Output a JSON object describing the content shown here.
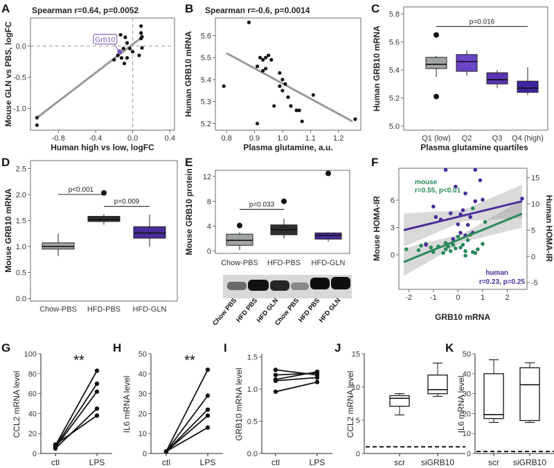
{
  "figure": {
    "panel_letters": [
      "A",
      "B",
      "C",
      "D",
      "E",
      "F",
      "G",
      "H",
      "I",
      "J",
      "K"
    ],
    "colors": {
      "gray": "#999999",
      "box_gray": "#a0a4a2",
      "box_dark": "#2e2e2e",
      "purple_mid": "#7b54b6",
      "purple_q2": "#6b44c8",
      "purple_dark": "#4a2c9a",
      "purple_q4": "#3f24a0",
      "green": "#2a8a5a",
      "dashed": "#aaaaaa"
    }
  },
  "chart_data": [
    {
      "panel": "A",
      "type": "scatter",
      "title": "Spearman r=0.64, p=0.0052",
      "xlabel": "Human high vs low, logFC",
      "ylabel": "Mouse GLN vs PBS, logFC",
      "xlim": [
        -1.1,
        0.45
      ],
      "ylim": [
        -1.35,
        0.45
      ],
      "xticks": [
        "-0.8",
        "-0.4",
        "0.0",
        "0.4"
      ],
      "xtick_values": [
        -0.8,
        -0.4,
        0.0,
        0.4
      ],
      "yticks": [
        "-1.0",
        "-0.5",
        "0.0"
      ],
      "ytick_values": [
        -1.0,
        -0.5,
        0.0
      ],
      "annotation": "Grb10",
      "highlight_point": [
        -0.14,
        -0.09
      ],
      "fit_line": [
        [
          -1.03,
          -1.15
        ],
        [
          0.09,
          0.13
        ]
      ],
      "points": [
        [
          -1.03,
          -1.15
        ],
        [
          -1.03,
          -1.27
        ],
        [
          0.09,
          0.32
        ],
        [
          0.09,
          0.21
        ],
        [
          0.09,
          0.12
        ],
        [
          0.1,
          0.15
        ],
        [
          -0.13,
          0.18
        ],
        [
          -0.08,
          0.14
        ],
        [
          -0.06,
          0.05
        ],
        [
          -0.1,
          -0.04
        ],
        [
          -0.16,
          -0.15
        ],
        [
          -0.2,
          -0.22
        ],
        [
          -0.12,
          -0.19
        ],
        [
          -0.06,
          -0.19
        ],
        [
          -0.09,
          -0.28
        ],
        [
          0.07,
          -0.15
        ],
        [
          0.0,
          -0.09
        ],
        [
          -0.03,
          -0.04
        ],
        [
          0.1,
          -0.03
        ]
      ]
    },
    {
      "panel": "B",
      "type": "scatter",
      "title": "Spearman r=-0.6, p=0.0014",
      "xlabel": "Plasma glutamine, a.u.",
      "ylabel": "Human GRB10 mRNA",
      "xlim": [
        0.76,
        1.28
      ],
      "ylim": [
        5.17,
        5.68
      ],
      "xticks": [
        "0.8",
        "0.9",
        "1.0",
        "1.1",
        "1.2"
      ],
      "xtick_values": [
        0.8,
        0.9,
        1.0,
        1.1,
        1.2
      ],
      "yticks": [
        "5.2",
        "5.3",
        "5.4",
        "5.5",
        "5.6"
      ],
      "ytick_values": [
        5.2,
        5.3,
        5.4,
        5.5,
        5.6
      ],
      "fit_line": [
        [
          0.8,
          5.52
        ],
        [
          1.25,
          5.21
        ]
      ],
      "points": [
        [
          0.88,
          5.66
        ],
        [
          0.79,
          5.37
        ],
        [
          0.91,
          5.46
        ],
        [
          0.92,
          5.5
        ],
        [
          0.93,
          5.49
        ],
        [
          0.94,
          5.5
        ],
        [
          0.95,
          5.51
        ],
        [
          0.96,
          5.49
        ],
        [
          0.94,
          5.45
        ],
        [
          0.93,
          5.44
        ],
        [
          0.99,
          5.43
        ],
        [
          1.0,
          5.4
        ],
        [
          1.01,
          5.38
        ],
        [
          0.99,
          5.37
        ],
        [
          1.0,
          5.35
        ],
        [
          1.02,
          5.32
        ],
        [
          0.97,
          5.28
        ],
        [
          1.03,
          5.28
        ],
        [
          1.05,
          5.26
        ],
        [
          1.06,
          5.26
        ],
        [
          1.11,
          5.33
        ],
        [
          1.07,
          5.21
        ],
        [
          0.91,
          5.2
        ],
        [
          1.26,
          5.22
        ]
      ]
    },
    {
      "panel": "C",
      "type": "box",
      "xlabel": "Plasma glutamine quartiles",
      "ylabel": "Human GRB10 mRNA",
      "ylim": [
        4.97,
        5.85
      ],
      "yticks": [
        "5.0",
        "5.2",
        "5.4",
        "5.6",
        "5.8"
      ],
      "ytick_values": [
        5.0,
        5.2,
        5.4,
        5.6,
        5.8
      ],
      "categories": [
        "Q1 (low)",
        "Q2",
        "Q3",
        "Q4 (high)"
      ],
      "boxes": [
        {
          "min": 5.35,
          "q1": 5.41,
          "median": 5.44,
          "q3": 5.49,
          "max": 5.5,
          "outliers": [
            5.65,
            5.21
          ],
          "color": "#a0a4a2"
        },
        {
          "min": 5.36,
          "q1": 5.39,
          "median": 5.46,
          "q3": 5.51,
          "max": 5.54,
          "outliers": [],
          "color": "#6b44c8"
        },
        {
          "min": 5.27,
          "q1": 5.3,
          "median": 5.33,
          "q3": 5.38,
          "max": 5.4,
          "outliers": [],
          "color": "#5b34b0"
        },
        {
          "min": 5.22,
          "q1": 5.24,
          "median": 5.27,
          "q3": 5.32,
          "max": 5.42,
          "outliers": [],
          "color": "#3f24a0"
        }
      ],
      "annotation": {
        "text": "p=0.016",
        "from": 0,
        "to": 3,
        "y": 5.71
      }
    },
    {
      "panel": "D",
      "type": "box",
      "ylabel": "Mouse GRB10 mRNA",
      "ylim": [
        -0.05,
        2.65
      ],
      "yticks": [
        "0.0",
        "0.5",
        "1.0",
        "1.5",
        "2.0",
        "2.5"
      ],
      "ytick_values": [
        0.0,
        0.5,
        1.0,
        1.5,
        2.0,
        2.5
      ],
      "categories": [
        "Chow-PBS",
        "HFD-PBS",
        "HFD-GLN"
      ],
      "boxes": [
        {
          "min": 0.82,
          "q1": 0.95,
          "median": 1.0,
          "q3": 1.07,
          "max": 1.25,
          "outliers": [],
          "color": "#a0a4a2"
        },
        {
          "min": 1.42,
          "q1": 1.48,
          "median": 1.52,
          "q3": 1.58,
          "max": 1.62,
          "outliers": [
            2.03
          ],
          "color": "#2e2e2e"
        },
        {
          "min": 1.0,
          "q1": 1.16,
          "median": 1.26,
          "q3": 1.38,
          "max": 1.62,
          "outliers": [],
          "color": "#4a2c9a"
        }
      ],
      "annotations": [
        {
          "text": "p<0.001",
          "from": 0,
          "to": 1,
          "y": 2.0
        },
        {
          "text": "p=0.009",
          "from": 1,
          "to": 2,
          "y": 1.77
        }
      ]
    },
    {
      "panel": "E",
      "type": "box",
      "ylabel": "Mouse GRB10 protein",
      "ylim": [
        -0.4,
        13
      ],
      "yticks": [
        "0",
        "4",
        "8",
        "12"
      ],
      "ytick_values": [
        0,
        4,
        8,
        12
      ],
      "categories": [
        "Chow-PBS",
        "HFD-PBS",
        "HFD-GLN"
      ],
      "boxes": [
        {
          "min": 0.1,
          "q1": 0.9,
          "median": 1.7,
          "q3": 2.7,
          "max": 3.0,
          "outliers": [
            4.1
          ],
          "color": "#a0a4a2"
        },
        {
          "min": 2.0,
          "q1": 2.6,
          "median": 3.4,
          "q3": 4.2,
          "max": 5.2,
          "outliers": [
            8.0
          ],
          "color": "#2e2e2e"
        },
        {
          "min": 1.5,
          "q1": 1.9,
          "median": 2.5,
          "q3": 2.9,
          "max": 3.0,
          "outliers": [
            12.5
          ],
          "color": "#4a2c9a"
        }
      ],
      "annotations": [
        {
          "text": "p=0.033",
          "from": 0,
          "to": 1,
          "y": 6.7
        }
      ],
      "blot_lanes": [
        "Chow PBS",
        "HFD PBS",
        "HFD GLN",
        "Chow PBS",
        "HFD PBS",
        "HFD GLN"
      ]
    },
    {
      "panel": "F",
      "type": "scatter",
      "xlabel": "GRB10 mRNA",
      "ylabel": "Mouse HOMA-IR",
      "ylabel_right": "Human HOMA-IR",
      "xlim": [
        -2.4,
        2.8
      ],
      "ylim_left": [
        -3.8,
        9.5
      ],
      "ylim_right": [
        -6.3,
        16.8
      ],
      "xticks": [
        "-2",
        "-1",
        "0",
        "1",
        "2"
      ],
      "xtick_values": [
        -2,
        -1,
        0,
        1,
        2
      ],
      "yticks_left": [
        "0",
        "3",
        "6"
      ],
      "ytick_values_left": [
        0,
        3,
        6
      ],
      "yticks_right": [
        "-5",
        "0",
        "5",
        "10",
        "15"
      ],
      "ytick_values_right": [
        -5,
        0,
        5,
        10,
        15
      ],
      "series": [
        {
          "name": "mouse",
          "label": "mouse",
          "stat": "r=0.55, p<0.01",
          "color": "#2a8a5a",
          "axis": "left",
          "fit": [
            [
              -2.2,
              -0.8
            ],
            [
              2.6,
              4.5
            ]
          ],
          "points": [
            [
              -2.1,
              0.6
            ],
            [
              -1.6,
              0.5
            ],
            [
              -1.5,
              1.0
            ],
            [
              -1.3,
              1.2
            ],
            [
              -1.1,
              0.8
            ],
            [
              -1.0,
              0.3
            ],
            [
              -0.8,
              0.9
            ],
            [
              -0.6,
              0.2
            ],
            [
              -0.5,
              0.6
            ],
            [
              -0.4,
              0.9
            ],
            [
              -0.3,
              0.4
            ],
            [
              -0.2,
              1.1
            ],
            [
              -0.1,
              0.7
            ],
            [
              0.0,
              2.0
            ],
            [
              0.1,
              0.8
            ],
            [
              0.2,
              1.1
            ],
            [
              0.3,
              0.4
            ],
            [
              0.4,
              1.6
            ],
            [
              0.5,
              2.2
            ],
            [
              0.6,
              0.3
            ],
            [
              0.7,
              0.2
            ],
            [
              0.8,
              0.6
            ],
            [
              1.0,
              1.2
            ],
            [
              1.1,
              3.6
            ],
            [
              0.3,
              -0.1
            ],
            [
              -0.5,
              1.3
            ],
            [
              0.6,
              5.1
            ]
          ]
        },
        {
          "name": "human",
          "label": "human",
          "stat": "r=0.23, p=0.25",
          "color": "#4a2c9a",
          "axis": "right",
          "fit": [
            [
              -2.2,
              5.0
            ],
            [
              2.6,
              10.5
            ]
          ],
          "points": [
            [
              -1.3,
              2.2
            ],
            [
              -1.0,
              9.5
            ],
            [
              -0.9,
              7.5
            ],
            [
              -0.7,
              7.0
            ],
            [
              -0.3,
              8.2
            ],
            [
              -0.1,
              13.3
            ],
            [
              0.0,
              6.1
            ],
            [
              0.1,
              8.0
            ],
            [
              0.2,
              8.8
            ],
            [
              0.3,
              4.0
            ],
            [
              0.3,
              12.0
            ],
            [
              0.4,
              6.0
            ],
            [
              0.5,
              7.5
            ],
            [
              0.6,
              4.5
            ],
            [
              0.7,
              16.5
            ],
            [
              0.7,
              10.5
            ],
            [
              0.9,
              14.5
            ],
            [
              1.0,
              10.8
            ],
            [
              -0.5,
              16.5
            ],
            [
              2.6,
              11.0
            ],
            [
              -0.2,
              3.3
            ],
            [
              0.1,
              4.5
            ]
          ]
        }
      ]
    },
    {
      "panel": "G",
      "type": "line",
      "ylabel": "CCL2 mRNA level",
      "ylim": [
        0,
        100
      ],
      "yticks": [
        "0",
        "20",
        "40",
        "60",
        "80",
        "100"
      ],
      "ytick_values": [
        0,
        20,
        40,
        60,
        80,
        100
      ],
      "categories": [
        "ctl",
        "LPS"
      ],
      "annotation": "**",
      "pairs": [
        [
          8,
          83
        ],
        [
          7,
          70
        ],
        [
          6,
          62
        ],
        [
          5,
          45
        ],
        [
          9,
          38
        ]
      ]
    },
    {
      "panel": "H",
      "type": "line",
      "ylabel": "IL6 mRNA level",
      "ylim": [
        0,
        50
      ],
      "yticks": [
        "0",
        "10",
        "20",
        "30",
        "40",
        "50"
      ],
      "ytick_values": [
        0,
        10,
        20,
        30,
        40,
        50
      ],
      "categories": [
        "ctl",
        "LPS"
      ],
      "annotation": "**",
      "pairs": [
        [
          1,
          42
        ],
        [
          1,
          29
        ],
        [
          1,
          22
        ],
        [
          1,
          19
        ],
        [
          1,
          13
        ]
      ]
    },
    {
      "panel": "I",
      "type": "line",
      "ylabel": "GRB10 mRNA level",
      "ylim": [
        0,
        1.55
      ],
      "yticks": [
        "0.0",
        "0.5",
        "1.0",
        "1.5"
      ],
      "ytick_values": [
        0.0,
        0.5,
        1.0,
        1.5
      ],
      "categories": [
        "ctl",
        "LPS"
      ],
      "pairs": [
        [
          1.3,
          1.22
        ],
        [
          1.22,
          1.25
        ],
        [
          1.15,
          1.27
        ],
        [
          1.13,
          1.18
        ],
        [
          0.96,
          1.11
        ]
      ]
    },
    {
      "panel": "J",
      "type": "box",
      "ylabel": "CCL2 mRNA level",
      "ylim": [
        0,
        15
      ],
      "yticks": [
        "0",
        "5",
        "10",
        "15"
      ],
      "ytick_values": [
        0,
        5,
        10,
        15
      ],
      "categories": [
        "scr",
        "siGRB10"
      ],
      "reference_line": 1,
      "boxes": [
        {
          "min": 5.8,
          "q1": 7.1,
          "median": 8.3,
          "q3": 8.7,
          "max": 9.0,
          "outliers": [],
          "color": "#ffffff"
        },
        {
          "min": 8.6,
          "q1": 9.0,
          "median": 9.6,
          "q3": 11.8,
          "max": 13.6,
          "outliers": [],
          "color": "#ffffff"
        }
      ]
    },
    {
      "panel": "K",
      "type": "box",
      "ylabel": "IL6 mRNA level",
      "ylim": [
        0,
        50
      ],
      "yticks": [
        "0",
        "10",
        "20",
        "30",
        "40",
        "50"
      ],
      "ytick_values": [
        0,
        10,
        20,
        30,
        40,
        50
      ],
      "categories": [
        "scr",
        "siGRB10"
      ],
      "reference_line": 1,
      "boxes": [
        {
          "min": 15.5,
          "q1": 17.5,
          "median": 19.5,
          "q3": 40,
          "max": 47,
          "outliers": [],
          "color": "#ffffff"
        },
        {
          "min": 15.5,
          "q1": 16.5,
          "median": 34.5,
          "q3": 43,
          "max": 45.5,
          "outliers": [],
          "color": "#ffffff"
        }
      ]
    }
  ]
}
